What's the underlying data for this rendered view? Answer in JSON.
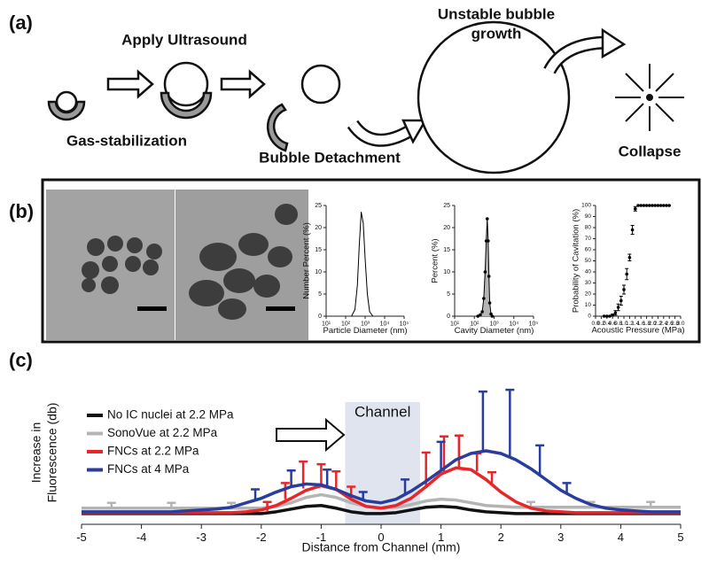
{
  "figure": {
    "panels": [
      "(a)",
      "(b)",
      "(c)"
    ],
    "apply": "Apply Ultrasound",
    "stabilization": "Gas-stabilization",
    "detachment": "Bubble Detachment",
    "growth": [
      "Unstable bubble",
      "growth"
    ],
    "collapse": "Collapse"
  },
  "chart_data": [
    {
      "type": "line",
      "x_label": "Particle Diameter (nm)",
      "y_label": "Number Percent (%)",
      "xscale": "log",
      "xlim": [
        10,
        100000
      ],
      "xticks": [
        {
          "value": 10,
          "label": "10¹"
        },
        {
          "value": 100,
          "label": "10²"
        },
        {
          "value": 1000,
          "label": "10³"
        },
        {
          "value": 10000,
          "label": "10⁴"
        },
        {
          "value": 100000,
          "label": "10⁵"
        }
      ],
      "ylim": [
        0,
        25
      ],
      "yticks": [
        0,
        5,
        10,
        15,
        20,
        25
      ],
      "x": [
        200,
        300,
        400,
        500,
        630,
        800,
        1000,
        1300,
        1700,
        2500
      ],
      "series": [
        {
          "color": "#000000",
          "values": [
            0,
            1.5,
            7,
            16,
            23.5,
            21,
            13,
            5,
            1,
            0
          ]
        }
      ]
    },
    {
      "type": "line",
      "x_label": "Cavity Diameter (nm)",
      "y_label": "Percent (%)",
      "xscale": "log",
      "xlim": [
        10,
        100000
      ],
      "markers": true,
      "area_color": "#b5b5b5",
      "xticks": [
        {
          "value": 10,
          "label": "10¹"
        },
        {
          "value": 100,
          "label": "10²"
        },
        {
          "value": 1000,
          "label": "10³"
        },
        {
          "value": 10000,
          "label": "10⁴"
        },
        {
          "value": 100000,
          "label": "10⁵"
        }
      ],
      "ylim": [
        0,
        25
      ],
      "yticks": [
        0,
        5,
        10,
        15,
        20,
        25
      ],
      "x": [
        150,
        200,
        250,
        300,
        350,
        400,
        450,
        500,
        550,
        600,
        700,
        800
      ],
      "series": [
        {
          "color": "#000000",
          "values": [
            0,
            0.3,
            1,
            4,
            10,
            17,
            22,
            17,
            9,
            3,
            0.5,
            0
          ]
        }
      ]
    },
    {
      "type": "scatter",
      "x_label": "Acoustic Pressure (MPa)",
      "y_label": "Probability of Cavitation (%)",
      "xlim": [
        0,
        3
      ],
      "xticks": [
        {
          "value": 0,
          "label": "0.0"
        },
        0.2,
        0.4,
        0.6,
        0.8,
        {
          "value": 1,
          "label": "1.0"
        },
        1.2,
        1.4,
        1.6,
        1.8,
        {
          "value": 2,
          "label": "2.0"
        },
        2.2,
        2.4,
        2.6,
        2.8,
        {
          "value": 3,
          "label": "3.0"
        }
      ],
      "ylim": [
        0,
        100
      ],
      "yticks": [
        0,
        10,
        20,
        30,
        40,
        50,
        60,
        70,
        80,
        90,
        100
      ],
      "x": [
        0.3,
        0.4,
        0.5,
        0.6,
        0.7,
        0.8,
        0.9,
        1.0,
        1.1,
        1.2,
        1.3,
        1.4,
        1.5,
        1.6,
        1.7,
        1.8,
        1.9,
        2.0,
        2.1,
        2.2,
        2.3,
        2.4,
        2.5,
        2.6
      ],
      "series": [
        {
          "color": "#000000",
          "values": [
            0,
            0,
            0,
            1,
            3,
            8,
            14,
            24,
            38,
            53,
            78,
            97,
            100,
            100,
            100,
            100,
            100,
            100,
            100,
            100,
            100,
            100,
            100,
            100
          ],
          "errors": [
            0,
            0,
            0,
            1,
            2,
            3,
            4,
            4,
            5,
            3,
            4,
            2,
            0,
            0,
            0,
            0,
            0,
            0,
            0,
            0,
            0,
            0,
            0,
            0
          ]
        }
      ]
    },
    {
      "type": "line",
      "x_label": "Distance from Channel (mm)",
      "y_label": [
        "Increase in",
        "Fluorescence (db)"
      ],
      "annotation": "Channel",
      "channel_span": [
        -0.6,
        0.65
      ],
      "legend": "upper left",
      "xlim": [
        -5,
        5
      ],
      "xticks": [
        -5,
        -4,
        -3,
        -2,
        -1,
        0,
        1,
        2,
        3,
        4,
        5
      ],
      "ylim": [
        -0.5,
        7.5
      ],
      "x": [
        -5,
        -4.75,
        -4.5,
        -4.25,
        -4,
        -3.75,
        -3.5,
        -3.25,
        -3,
        -2.75,
        -2.5,
        -2.25,
        -2,
        -1.75,
        -1.5,
        -1.25,
        -1,
        -0.75,
        -0.5,
        -0.25,
        0,
        0.25,
        0.5,
        0.75,
        1,
        1.25,
        1.5,
        1.75,
        2,
        2.25,
        2.5,
        2.75,
        3,
        3.25,
        3.5,
        3.75,
        4,
        4.25,
        4.5,
        4.75,
        5
      ],
      "series": [
        {
          "name": "No IC nuclei at 2.2 MPa",
          "color": "#111111",
          "values": [
            0.1,
            0.1,
            0.1,
            0.1,
            0.1,
            0.1,
            0.1,
            0.1,
            0.1,
            0.1,
            0.1,
            0.1,
            0.1,
            0.2,
            0.35,
            0.5,
            0.55,
            0.4,
            0.2,
            0.1,
            0.1,
            0.15,
            0.3,
            0.45,
            0.5,
            0.45,
            0.3,
            0.2,
            0.15,
            0.1,
            0.1,
            0.1,
            0.1,
            0.1,
            0.1,
            0.1,
            0.1,
            0.1,
            0.1,
            0.1,
            0.1
          ]
        },
        {
          "name": "SonoVue at 2.2 MPa",
          "color": "#b4b4b4",
          "values": [
            0.4,
            0.4,
            0.4,
            0.4,
            0.4,
            0.4,
            0.4,
            0.4,
            0.4,
            0.4,
            0.4,
            0.4,
            0.4,
            0.5,
            0.7,
            1.0,
            1.15,
            1.0,
            0.7,
            0.5,
            0.4,
            0.45,
            0.6,
            0.8,
            0.9,
            0.85,
            0.7,
            0.55,
            0.5,
            0.45,
            0.45,
            0.45,
            0.45,
            0.45,
            0.45,
            0.45,
            0.45,
            0.45,
            0.45,
            0.45,
            0.45
          ],
          "error_bars": {
            "x": [
              -4.5,
              -3.5,
              -2.5,
              2.5,
              3.5,
              4.5
            ],
            "values": [
              0.4,
              0.4,
              0.4,
              0.45,
              0.45,
              0.45
            ],
            "errors": [
              0.3,
              0.3,
              0.3,
              0.3,
              0.3,
              0.3
            ]
          }
        },
        {
          "name": "FNCs at 2.2 MPa",
          "color": "#e8262a",
          "values": [
            0.15,
            0.15,
            0.15,
            0.15,
            0.15,
            0.15,
            0.15,
            0.15,
            0.15,
            0.15,
            0.15,
            0.2,
            0.3,
            0.55,
            0.95,
            1.4,
            1.65,
            1.45,
            0.9,
            0.5,
            0.4,
            0.55,
            0.95,
            1.6,
            2.3,
            2.65,
            2.55,
            2.0,
            1.3,
            0.75,
            0.4,
            0.25,
            0.2,
            0.15,
            0.15,
            0.15,
            0.15,
            0.15,
            0.15,
            0.15,
            0.15
          ],
          "error_bars": {
            "x": [
              -1.9,
              -1.6,
              -1.3,
              -1.0,
              -0.75,
              -0.5,
              0.75,
              1.05,
              1.3,
              1.6,
              1.85
            ],
            "values": [
              0.25,
              0.9,
              1.5,
              1.65,
              1.45,
              0.9,
              1.6,
              2.4,
              2.65,
              2.45,
              1.8
            ],
            "errors": [
              0.5,
              0.9,
              1.5,
              1.2,
              1.0,
              0.7,
              1.9,
              2.0,
              1.8,
              1.0,
              0.6
            ]
          }
        },
        {
          "name": "FNCs at 4 MPa",
          "color": "#2a3c9c",
          "values": [
            0.2,
            0.2,
            0.2,
            0.2,
            0.2,
            0.2,
            0.2,
            0.25,
            0.3,
            0.35,
            0.45,
            0.7,
            0.95,
            1.3,
            1.6,
            1.75,
            1.7,
            1.45,
            1.1,
            0.8,
            0.7,
            0.9,
            1.35,
            1.9,
            2.5,
            3.1,
            3.45,
            3.6,
            3.45,
            3.1,
            2.6,
            2.0,
            1.4,
            0.95,
            0.6,
            0.4,
            0.3,
            0.25,
            0.2,
            0.2,
            0.2
          ],
          "error_bars": {
            "x": [
              -2.1,
              -1.5,
              -0.9,
              -0.3,
              0.4,
              1.0,
              1.7,
              2.15,
              2.65,
              3.1
            ],
            "values": [
              0.85,
              1.6,
              1.65,
              0.8,
              1.2,
              2.5,
              3.6,
              3.3,
              2.2,
              1.2
            ],
            "errors": [
              0.6,
              0.9,
              0.9,
              0.5,
              0.8,
              1.6,
              3.3,
              3.7,
              1.7,
              0.6
            ]
          }
        }
      ]
    }
  ]
}
